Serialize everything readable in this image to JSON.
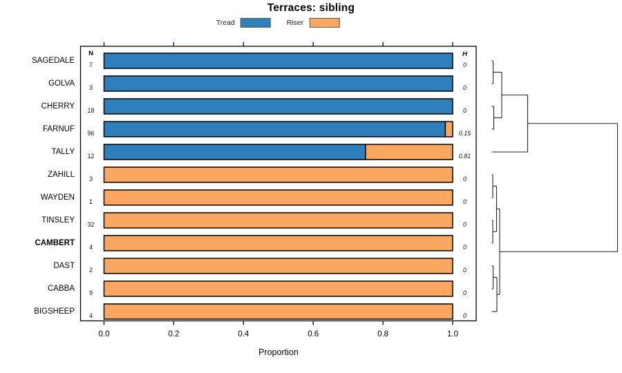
{
  "chart_data": {
    "type": "bar",
    "orientation": "horizontal-stacked",
    "title": "Terraces: sibling",
    "xlabel": "Proportion",
    "xlim": [
      0,
      1
    ],
    "xticks": [
      "0.0",
      "0.2",
      "0.4",
      "0.6",
      "0.8",
      "1.0"
    ],
    "grid": false,
    "legend_position": "top",
    "series": [
      {
        "name": "Tread",
        "color": "#2E80BD"
      },
      {
        "name": "Riser",
        "color": "#FBA75F"
      }
    ],
    "columns": {
      "n_header": "N",
      "h_header": "H"
    },
    "rows": [
      {
        "label": "SAGEDALE",
        "n": 7,
        "tread": 1,
        "riser": 0,
        "h": "0",
        "bold_label": false
      },
      {
        "label": "GOLVA",
        "n": 3,
        "tread": 1,
        "riser": 0,
        "h": "0",
        "bold_label": false
      },
      {
        "label": "CHERRY",
        "n": 18,
        "tread": 1,
        "riser": 0,
        "h": "0",
        "bold_label": false
      },
      {
        "label": "FARNUF",
        "n": 96,
        "tread": 0.979,
        "riser": 0.021,
        "h": "0.15",
        "bold_label": false
      },
      {
        "label": "TALLY",
        "n": 12,
        "tread": 0.75,
        "riser": 0.25,
        "h": "0.81",
        "bold_label": false
      },
      {
        "label": "ZAHILL",
        "n": 3,
        "tread": 0,
        "riser": 1,
        "h": "0",
        "bold_label": false
      },
      {
        "label": "WAYDEN",
        "n": 1,
        "tread": 0,
        "riser": 1,
        "h": "0",
        "bold_label": false
      },
      {
        "label": "TINSLEY",
        "n": 32,
        "tread": 0,
        "riser": 1,
        "h": "0",
        "bold_label": false
      },
      {
        "label": "CAMBERT",
        "n": 4,
        "tread": 0,
        "riser": 1,
        "h": "0",
        "bold_label": true
      },
      {
        "label": "DAST",
        "n": 2,
        "tread": 0,
        "riser": 1,
        "h": "0",
        "bold_label": false
      },
      {
        "label": "CABBA",
        "n": 9,
        "tread": 0,
        "riser": 1,
        "h": "0",
        "bold_label": false
      },
      {
        "label": "BIGSHEEP",
        "n": 4,
        "tread": 0,
        "riser": 1,
        "h": "0",
        "bold_label": false
      }
    ],
    "dendrogram": {
      "leaf_tip_x": 711.5,
      "root_x": 893.5,
      "merges": [
        {
          "id": "n1",
          "a": "SAGEDALE",
          "b": "GOLVA",
          "x": 713.5
        },
        {
          "id": "n2",
          "a": "CHERRY",
          "b": "FARNUF",
          "x": 714.5
        },
        {
          "id": "n3",
          "a": "n1",
          "b": "n2",
          "x": 726
        },
        {
          "id": "n4",
          "a": "n3",
          "b": "TALLY",
          "x": 763.5
        },
        {
          "id": "m1",
          "a": "ZAHILL",
          "b": "WAYDEN",
          "x": 713
        },
        {
          "id": "m2",
          "a": "TINSLEY",
          "b": "CAMBERT",
          "x": 713
        },
        {
          "id": "m3",
          "a": "m1",
          "b": "m2",
          "x": 718.5
        },
        {
          "id": "m4",
          "a": "DAST",
          "b": "CABBA",
          "x": 713.5
        },
        {
          "id": "m5",
          "a": "m4",
          "b": "BIGSHEEP",
          "x": 719
        },
        {
          "id": "m6",
          "a": "m3",
          "b": "m5",
          "x": 723
        },
        {
          "id": "root",
          "a": "n4",
          "b": "m6",
          "x": 893.5
        }
      ]
    }
  }
}
